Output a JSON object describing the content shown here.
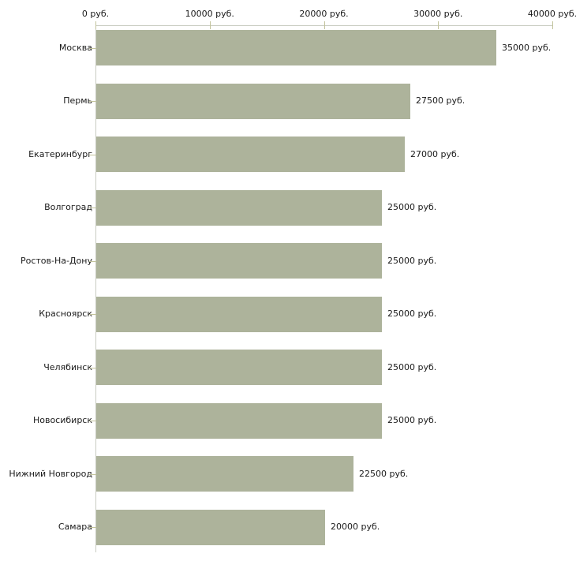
{
  "chart_data": {
    "type": "bar",
    "orientation": "horizontal",
    "title": "",
    "xlabel": "",
    "ylabel": "",
    "unit": "руб.",
    "categories": [
      "Москва",
      "Пермь",
      "Екатеринбург",
      "Волгоград",
      "Ростов-На-Дону",
      "Красноярск",
      "Челябинск",
      "Новосибирск",
      "Нижний Новгород",
      "Самара"
    ],
    "values": [
      35000,
      27500,
      27000,
      25000,
      25000,
      25000,
      25000,
      25000,
      22500,
      20000
    ],
    "value_labels": [
      "35000 руб.",
      "27500 руб.",
      "27000 руб.",
      "25000 руб.",
      "25000 руб.",
      "25000 руб.",
      "25000 руб.",
      "25000 руб.",
      "22500 руб.",
      "20000 руб."
    ],
    "x_ticks": [
      0,
      10000,
      20000,
      30000,
      40000
    ],
    "x_tick_labels": [
      "0 руб.",
      "10000 руб.",
      "20000 руб.",
      "30000 руб.",
      "40000 руб."
    ],
    "xlim": [
      0,
      40000
    ],
    "axis_position": "top",
    "grid": false,
    "legend": false,
    "colors": {
      "bar": "#adb39b",
      "axis_line": "#c9ccc2",
      "tick_mark": "#c2c39c",
      "text": "#1a1a1a",
      "background": "#ffffff"
    }
  }
}
